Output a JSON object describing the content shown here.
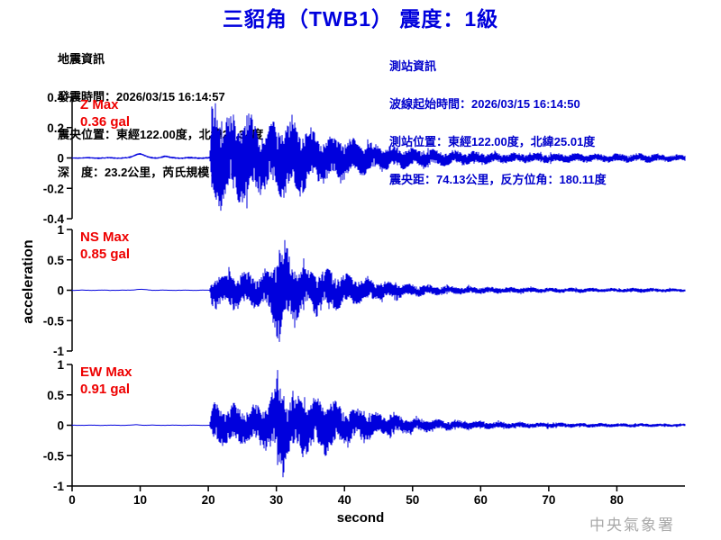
{
  "title": "三貂角（TWB1） 震度：1級",
  "watermark": "中央氣象署",
  "colors": {
    "title_blue": "#0000dd",
    "info_blue": "#0000cc",
    "label_red": "#ee0000",
    "trace_blue": "#0000dd",
    "watermark_gray": "#a9a9a9",
    "axis_black": "#000000"
  },
  "quake_info": {
    "heading": "地震資訊",
    "lines": [
      "發震時間：2026/03/15 16:14:57",
      "震央位置：東經122.00度，北緯24.34度",
      "深　度：23.2公里，芮氏規模：5.4"
    ]
  },
  "station_info": {
    "heading": "測站資訊",
    "lines": [
      "波線起始時間：2026/03/15 16:14:50",
      "測站位置：東經122.00度，北緯25.01度",
      "震央距：74.13公里，反方位角：180.11度"
    ]
  },
  "chart_data": {
    "type": "line",
    "title": "三貂角（TWB1） 震度：1級",
    "xlabel": "second",
    "ylabel": "acceleration",
    "x_range": [
      0,
      90
    ],
    "x_ticks": [
      0,
      10,
      20,
      30,
      40,
      50,
      60,
      70,
      80
    ],
    "grid": false,
    "line_color": "#0000dd",
    "traces": [
      {
        "name": "Z",
        "max_label": "Z Max",
        "max_value": "0.36 gal",
        "peak": 0.36,
        "peak_time": 21.0,
        "peak_sign": 1,
        "ylim": [
          -0.4,
          0.4
        ],
        "yticks": [
          "0.4",
          "0.2",
          "0",
          "-0.2",
          "-0.4"
        ],
        "seed": 3,
        "onset_time": 20.4,
        "envelope": [
          [
            0,
            0.005
          ],
          [
            8.5,
            0.006
          ],
          [
            20.2,
            0.007
          ],
          [
            20.5,
            0.28
          ],
          [
            21,
            0.33
          ],
          [
            21.5,
            0.3
          ],
          [
            22.5,
            0.24
          ],
          [
            24,
            0.22
          ],
          [
            25.5,
            0.27
          ],
          [
            26.5,
            0.22
          ],
          [
            28,
            0.19
          ],
          [
            30,
            0.2
          ],
          [
            31.5,
            0.23
          ],
          [
            33,
            0.22
          ],
          [
            34.5,
            0.17
          ],
          [
            36,
            0.15
          ],
          [
            38,
            0.13
          ],
          [
            40,
            0.115
          ],
          [
            42,
            0.095
          ],
          [
            45,
            0.08
          ],
          [
            48,
            0.065
          ],
          [
            50,
            0.055
          ],
          [
            53,
            0.048
          ],
          [
            56,
            0.042
          ],
          [
            60,
            0.036
          ],
          [
            64,
            0.03
          ],
          [
            68,
            0.028
          ],
          [
            72,
            0.027
          ],
          [
            76,
            0.025
          ],
          [
            80,
            0.024
          ],
          [
            84,
            0.026
          ],
          [
            87,
            0.022
          ],
          [
            90,
            0.018
          ]
        ],
        "bumps": [
          [
            9.9,
            0.028,
            0.7
          ],
          [
            13.6,
            0.01,
            0.5
          ]
        ]
      },
      {
        "name": "NS",
        "max_label": "NS Max",
        "max_value": "0.85 gal",
        "peak": 0.85,
        "peak_time": 30.4,
        "peak_sign": -1,
        "ylim": [
          -1,
          1
        ],
        "yticks": [
          "1",
          "0.5",
          "0",
          "-0.5",
          "-1"
        ],
        "seed": 11,
        "onset_time": 20.4,
        "envelope": [
          [
            0,
            0.006
          ],
          [
            20.2,
            0.008
          ],
          [
            20.5,
            0.2
          ],
          [
            21,
            0.26
          ],
          [
            22,
            0.22
          ],
          [
            23,
            0.25
          ],
          [
            24,
            0.28
          ],
          [
            25,
            0.24
          ],
          [
            26,
            0.28
          ],
          [
            27,
            0.24
          ],
          [
            28,
            0.26
          ],
          [
            29,
            0.32
          ],
          [
            29.7,
            0.5
          ],
          [
            30.2,
            0.72
          ],
          [
            30.6,
            0.68
          ],
          [
            31,
            0.5
          ],
          [
            31.6,
            0.55
          ],
          [
            32.2,
            0.42
          ],
          [
            33,
            0.38
          ],
          [
            34,
            0.33
          ],
          [
            35,
            0.29
          ],
          [
            36,
            0.36
          ],
          [
            37,
            0.28
          ],
          [
            38,
            0.3
          ],
          [
            39,
            0.25
          ],
          [
            40,
            0.23
          ],
          [
            42,
            0.19
          ],
          [
            44,
            0.15
          ],
          [
            46,
            0.125
          ],
          [
            48,
            0.105
          ],
          [
            50,
            0.09
          ],
          [
            53,
            0.072
          ],
          [
            56,
            0.06
          ],
          [
            60,
            0.05
          ],
          [
            64,
            0.042
          ],
          [
            68,
            0.038
          ],
          [
            72,
            0.034
          ],
          [
            76,
            0.032
          ],
          [
            80,
            0.03
          ],
          [
            84,
            0.034
          ],
          [
            87,
            0.028
          ],
          [
            90,
            0.024
          ]
        ],
        "bumps": [
          [
            10,
            0.015,
            0.8
          ]
        ]
      },
      {
        "name": "EW",
        "max_label": "EW Max",
        "max_value": "0.91 gal",
        "peak": 0.91,
        "peak_time": 30.2,
        "peak_sign": 1,
        "ylim": [
          -1,
          1
        ],
        "yticks": [
          "1",
          "0.5",
          "0",
          "-0.5",
          "-1"
        ],
        "seed": 27,
        "onset_time": 20.4,
        "envelope": [
          [
            0,
            0.005
          ],
          [
            20.2,
            0.007
          ],
          [
            20.5,
            0.26
          ],
          [
            21,
            0.31
          ],
          [
            22,
            0.28
          ],
          [
            23,
            0.26
          ],
          [
            24,
            0.3
          ],
          [
            25,
            0.28
          ],
          [
            26,
            0.26
          ],
          [
            27,
            0.28
          ],
          [
            28,
            0.32
          ],
          [
            29,
            0.38
          ],
          [
            29.6,
            0.5
          ],
          [
            30.2,
            0.75
          ],
          [
            30.7,
            0.58
          ],
          [
            31.2,
            0.46
          ],
          [
            32,
            0.42
          ],
          [
            33,
            0.4
          ],
          [
            34,
            0.45
          ],
          [
            35,
            0.38
          ],
          [
            36,
            0.36
          ],
          [
            37,
            0.4
          ],
          [
            38,
            0.38
          ],
          [
            39,
            0.3
          ],
          [
            40,
            0.28
          ],
          [
            42,
            0.22
          ],
          [
            44,
            0.185
          ],
          [
            46,
            0.15
          ],
          [
            48,
            0.13
          ],
          [
            50,
            0.11
          ],
          [
            53,
            0.085
          ],
          [
            56,
            0.07
          ],
          [
            60,
            0.055
          ],
          [
            64,
            0.046
          ],
          [
            68,
            0.04
          ],
          [
            72,
            0.035
          ],
          [
            76,
            0.031
          ],
          [
            80,
            0.028
          ],
          [
            84,
            0.027
          ],
          [
            87,
            0.024
          ],
          [
            90,
            0.02
          ]
        ],
        "bumps": [
          [
            9.5,
            0.008,
            0.5
          ]
        ]
      }
    ]
  }
}
